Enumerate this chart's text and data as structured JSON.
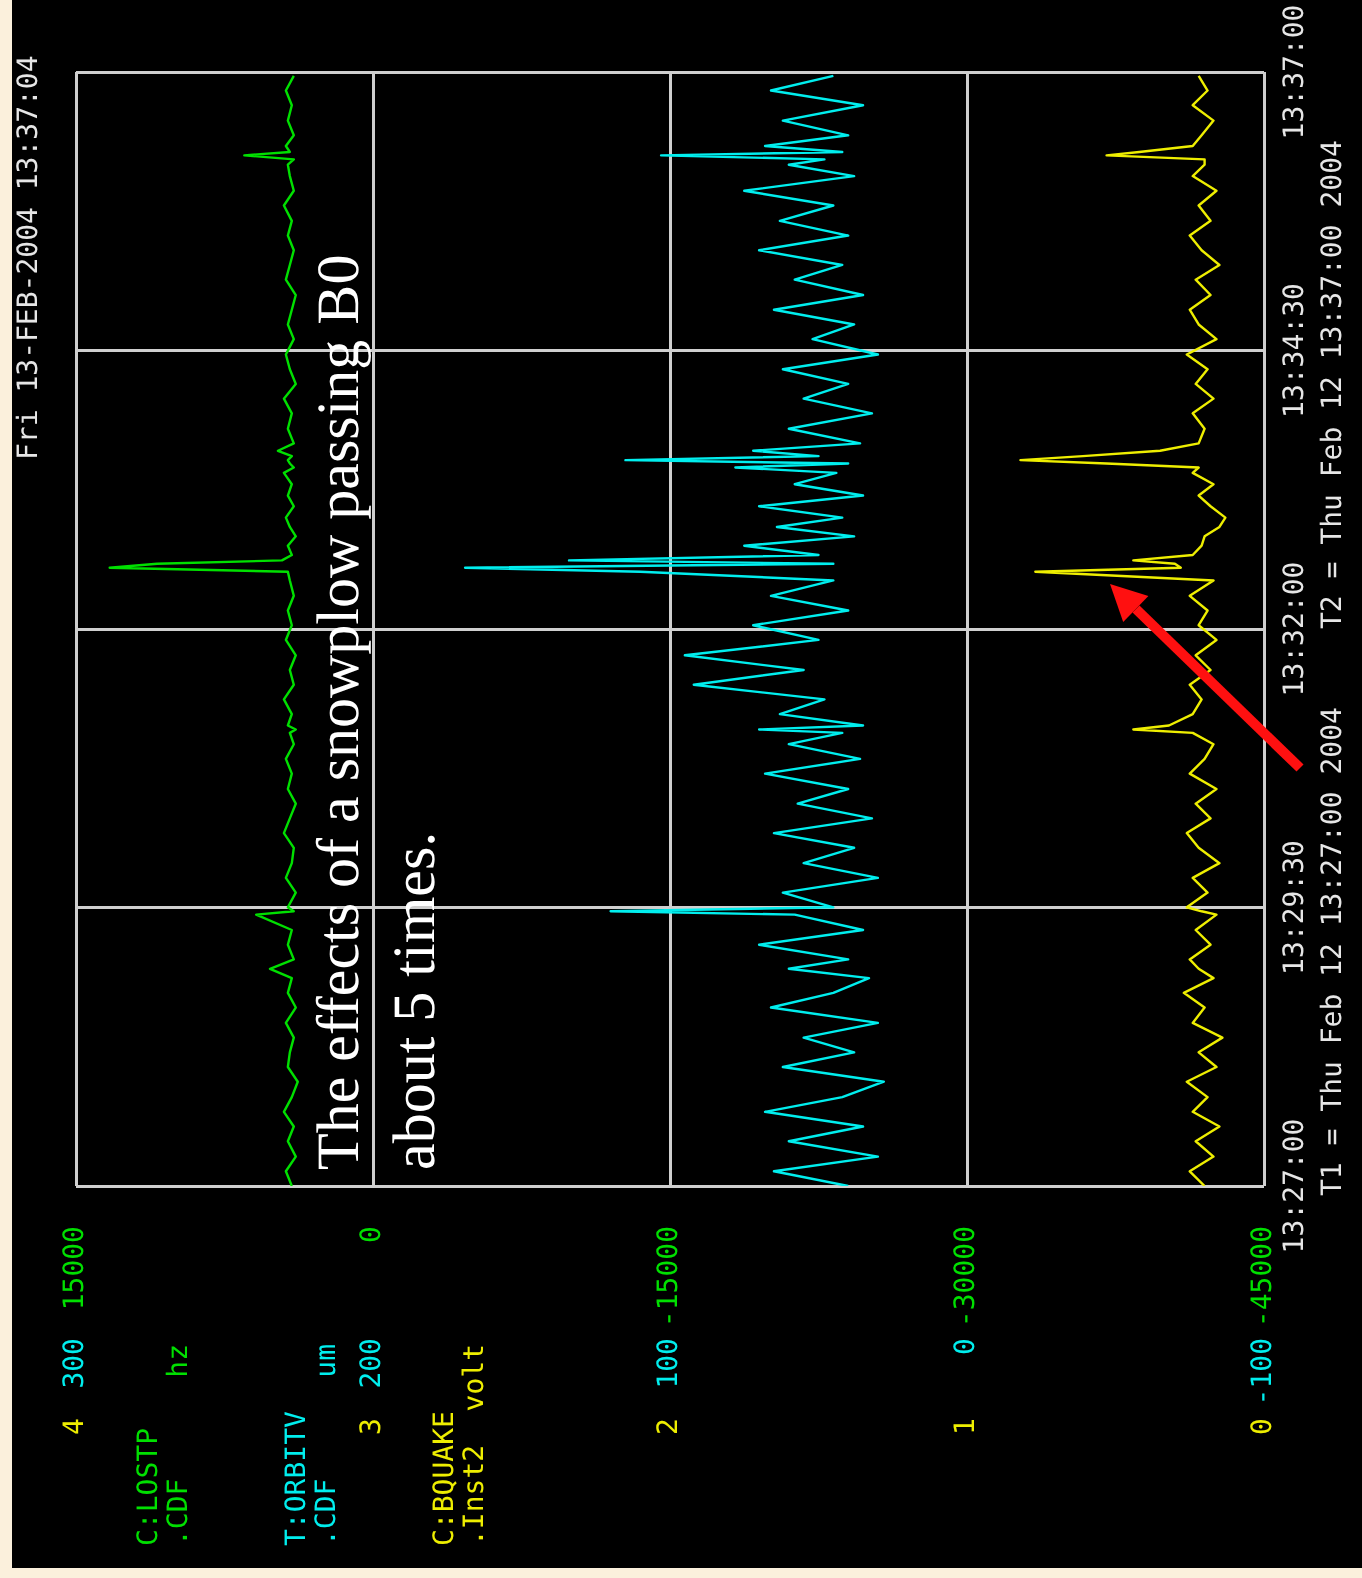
{
  "chart_data": [
    {
      "type": "line",
      "orientation": "horizontal",
      "title": "Fri 13-FEB-2004 13:37:04",
      "annotations": [
        "T1 = Thu Feb 12 13:27:00 2004",
        "T2 = Thu Feb 12 13:37:00 2004",
        "The effects of a snowplow passing B0 about 5 times."
      ],
      "x": [
        13.45,
        13.4522,
        13.4544,
        13.4567,
        13.4589,
        13.4611,
        13.4633,
        13.4656,
        13.4678,
        13.47,
        13.4722,
        13.4744,
        13.4767,
        13.4789,
        13.4811,
        13.4825,
        13.4839,
        13.4861,
        13.4883,
        13.4906,
        13.4911,
        13.4917,
        13.4939,
        13.4961,
        13.4983,
        13.5006,
        13.5028,
        13.505,
        13.5072,
        13.5094,
        13.5117,
        13.5139,
        13.5161,
        13.5178,
        13.5183,
        13.5189,
        13.5206,
        13.5228,
        13.525,
        13.5272,
        13.5294,
        13.5317,
        13.5339,
        13.5361,
        13.5383,
        13.5406,
        13.5419,
        13.5425,
        13.5431,
        13.5436,
        13.5444,
        13.5458,
        13.5472,
        13.5486,
        13.55,
        13.5517,
        13.5533,
        13.555,
        13.5567,
        13.5575,
        13.5581,
        13.5586,
        13.5592,
        13.56,
        13.5611,
        13.5633,
        13.5656,
        13.5678,
        13.57,
        13.5722,
        13.5744,
        13.5767,
        13.5789,
        13.5811,
        13.5833,
        13.5856,
        13.5878,
        13.59,
        13.5922,
        13.5944,
        13.5967,
        13.5989,
        13.6011,
        13.6028,
        13.6036,
        13.6042,
        13.6047,
        13.6056,
        13.6072,
        13.6094,
        13.6117,
        13.6139,
        13.6161
      ],
      "series": [
        {
          "name": "C:LOSTP .CDF hz",
          "color": "#00e000",
          "values": [
            4100,
            4400,
            3900,
            4300,
            4000,
            4500,
            4100,
            3800,
            4300,
            4200,
            4000,
            4400,
            3900,
            4300,
            4100,
            5200,
            4000,
            4300,
            4100,
            5900,
            4000,
            4300,
            3900,
            4400,
            4100,
            4000,
            4500,
            4200,
            3900,
            4300,
            4100,
            4400,
            4000,
            4200,
            3900,
            4300,
            4100,
            4500,
            4000,
            4200,
            3900,
            4400,
            4100,
            4300,
            4000,
            4200,
            4300,
            13300,
            10900,
            4600,
            4100,
            4300,
            3900,
            4200,
            4400,
            4000,
            4300,
            4100,
            4500,
            4000,
            4200,
            4300,
            4100,
            4800,
            4000,
            4300,
            4100,
            4500,
            3900,
            4200,
            4400,
            4000,
            4300,
            4100,
            3900,
            4400,
            4200,
            4000,
            4300,
            4100,
            4500,
            4000,
            4200,
            4300,
            4000,
            6500,
            4200,
            4400,
            4000,
            4300,
            4100,
            4400,
            4000
          ]
        },
        {
          "name": "T:ORBITV .CDF um",
          "color": "#00eeee",
          "axis": "x2",
          "values": [
            40,
            65,
            30,
            60,
            35,
            68,
            42,
            28,
            62,
            38,
            55,
            30,
            66,
            45,
            33,
            60,
            40,
            70,
            35,
            58,
            120,
            45,
            62,
            30,
            55,
            38,
            65,
            32,
            57,
            40,
            68,
            36,
            60,
            42,
            70,
            35,
            63,
            48,
            92,
            55,
            95,
            50,
            72,
            40,
            66,
            45,
            110,
            169,
            45,
            134,
            50,
            75,
            38,
            64,
            42,
            70,
            35,
            58,
            44,
            78,
            40,
            115,
            50,
            72,
            36,
            60,
            32,
            55,
            40,
            62,
            30,
            52,
            38,
            65,
            35,
            58,
            42,
            70,
            40,
            63,
            45,
            75,
            38,
            60,
            48,
            103,
            42,
            68,
            40,
            62,
            35,
            66,
            45
          ]
        }
      ],
      "xlim": [
        15000,
        -45000
      ],
      "xticks": [
        15000,
        0,
        -15000,
        -30000,
        -45000
      ],
      "x2lim": [
        300,
        -100
      ],
      "x2ticks": [
        300,
        200,
        100,
        0,
        -100
      ],
      "ylim": [
        13.45,
        13.61667
      ],
      "yticks": [
        {
          "value": 13.45,
          "label": "13:27:00"
        },
        {
          "value": 13.49167,
          "label": "13:29:30"
        },
        {
          "value": 13.53333,
          "label": "13:32:00"
        },
        {
          "value": 13.575,
          "label": "13:34:30"
        },
        {
          "value": 13.61667,
          "label": "13:37:00"
        }
      ],
      "grid": true
    },
    {
      "type": "line",
      "orientation": "horizontal",
      "x": [
        13.45,
        13.4522,
        13.4544,
        13.4567,
        13.4589,
        13.4611,
        13.4633,
        13.4656,
        13.4678,
        13.47,
        13.4722,
        13.4744,
        13.4767,
        13.4789,
        13.4811,
        13.4825,
        13.4839,
        13.4861,
        13.4883,
        13.4906,
        13.4911,
        13.4917,
        13.4939,
        13.4961,
        13.4983,
        13.5006,
        13.5028,
        13.505,
        13.5072,
        13.5094,
        13.5117,
        13.5139,
        13.5161,
        13.5178,
        13.5183,
        13.5189,
        13.5206,
        13.5228,
        13.525,
        13.5272,
        13.5294,
        13.5317,
        13.5339,
        13.5361,
        13.5383,
        13.5406,
        13.5419,
        13.5425,
        13.5431,
        13.5436,
        13.5444,
        13.5458,
        13.5472,
        13.5486,
        13.55,
        13.5517,
        13.5533,
        13.555,
        13.5567,
        13.5575,
        13.5581,
        13.5586,
        13.5592,
        13.56,
        13.5611,
        13.5633,
        13.5656,
        13.5678,
        13.57,
        13.5722,
        13.5744,
        13.5767,
        13.5789,
        13.5811,
        13.5833,
        13.5856,
        13.5878,
        13.59,
        13.5922,
        13.5944,
        13.5967,
        13.5989,
        13.6011,
        13.6028,
        13.6036,
        13.6042,
        13.6047,
        13.6056,
        13.6072,
        13.6094,
        13.6117,
        13.6139,
        13.6161
      ],
      "series": [
        {
          "name": "C:BQUAKE .Inst2 volt",
          "color": "#eeee00",
          "values": [
            0.2,
            0.25,
            0.17,
            0.23,
            0.15,
            0.24,
            0.19,
            0.26,
            0.16,
            0.22,
            0.14,
            0.24,
            0.2,
            0.27,
            0.17,
            0.22,
            0.25,
            0.18,
            0.23,
            0.16,
            0.21,
            0.26,
            0.19,
            0.24,
            0.15,
            0.22,
            0.26,
            0.18,
            0.23,
            0.16,
            0.25,
            0.2,
            0.17,
            0.24,
            0.44,
            0.32,
            0.24,
            0.21,
            0.25,
            0.18,
            0.23,
            0.16,
            0.22,
            0.19,
            0.25,
            0.17,
            0.77,
            0.28,
            0.3,
            0.44,
            0.24,
            0.21,
            0.2,
            0.15,
            0.13,
            0.18,
            0.22,
            0.17,
            0.24,
            0.22,
            0.53,
            0.82,
            0.61,
            0.35,
            0.22,
            0.2,
            0.24,
            0.17,
            0.23,
            0.19,
            0.26,
            0.16,
            0.22,
            0.25,
            0.18,
            0.23,
            0.15,
            0.21,
            0.25,
            0.18,
            0.22,
            0.16,
            0.24,
            0.2,
            0.2,
            0.53,
            0.42,
            0.24,
            0.21,
            0.17,
            0.24,
            0.19,
            0.22
          ]
        }
      ],
      "xlim": [
        4,
        0
      ],
      "xticks": [
        4,
        3,
        2,
        1,
        0
      ],
      "ylim": [
        13.45,
        13.61667
      ],
      "tick_labels": "x"
    }
  ]
}
